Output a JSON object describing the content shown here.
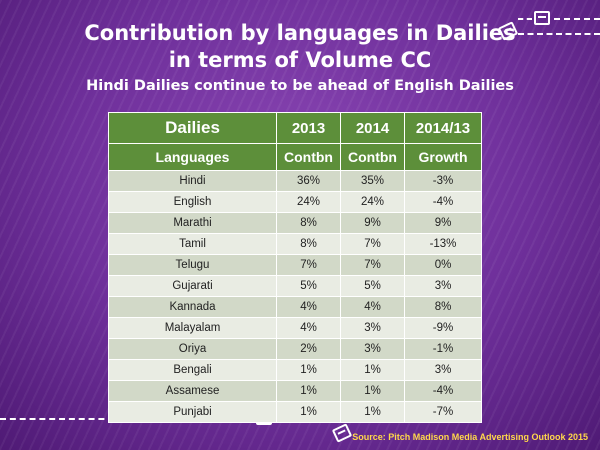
{
  "slide": {
    "title_line1": "Contribution by languages in Dailies",
    "title_line2": "in terms of Volume CC",
    "subtitle": "Hindi Dailies continue to be ahead of English Dailies",
    "source": "Source: Pitch Madison Media Advertising Outlook 2015"
  },
  "table": {
    "header": [
      "Dailies",
      "2013",
      "2014",
      "2014/13"
    ],
    "subheader": [
      "Languages",
      "Contbn",
      "Contbn",
      "Growth"
    ],
    "rows": [
      [
        "Hindi",
        "36%",
        "35%",
        "-3%"
      ],
      [
        "English",
        "24%",
        "24%",
        "-4%"
      ],
      [
        "Marathi",
        "8%",
        "9%",
        "9%"
      ],
      [
        "Tamil",
        "8%",
        "7%",
        "-13%"
      ],
      [
        "Telugu",
        "7%",
        "7%",
        "0%"
      ],
      [
        "Gujarati",
        "5%",
        "5%",
        "3%"
      ],
      [
        "Kannada",
        "4%",
        "4%",
        "8%"
      ],
      [
        "Malayalam",
        "4%",
        "3%",
        "-9%"
      ],
      [
        "Oriya",
        "2%",
        "3%",
        "-1%"
      ],
      [
        "Bengali",
        "1%",
        "1%",
        "3%"
      ],
      [
        "Assamese",
        "1%",
        "1%",
        "-4%"
      ],
      [
        "Punjabi",
        "1%",
        "1%",
        "-7%"
      ]
    ]
  },
  "colors": {
    "background": "#6e2f9a",
    "header_green": "#5d8f3a",
    "row_odd": "#d2d9c8",
    "row_even": "#e9ece3",
    "source_text": "#ffd84a"
  },
  "icons": [
    "newspaper-icon"
  ]
}
